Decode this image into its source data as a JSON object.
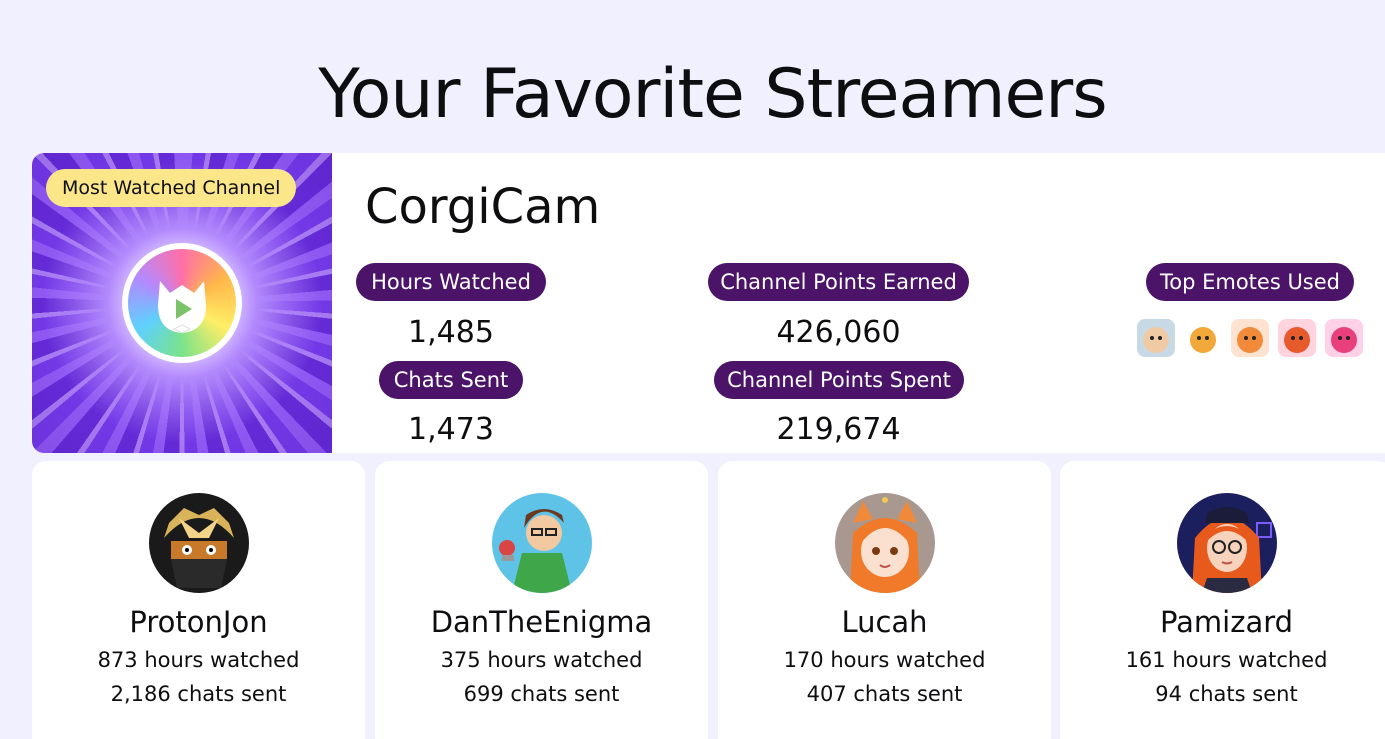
{
  "page": {
    "title": "Your Favorite Streamers"
  },
  "featured": {
    "badge": "Most Watched Channel",
    "channel_name": "CorgiCam",
    "stats": {
      "hours_watched": {
        "label": "Hours Watched",
        "value": "1,485"
      },
      "chats_sent": {
        "label": "Chats Sent",
        "value": "1,473"
      },
      "points_earned": {
        "label": "Channel Points Earned",
        "value": "426,060"
      },
      "points_spent": {
        "label": "Channel Points Spent",
        "value": "219,674"
      }
    },
    "top_emotes": {
      "label": "Top Emotes Used",
      "items": [
        "emote-icon",
        "emote-icon",
        "emote-icon",
        "emote-icon",
        "emote-icon"
      ]
    }
  },
  "streamers": [
    {
      "name": "ProtonJon",
      "hours": "873 hours watched",
      "chats": "2,186 chats sent"
    },
    {
      "name": "DanTheEnigma",
      "hours": "375 hours watched",
      "chats": "699 chats sent"
    },
    {
      "name": "Lucah",
      "hours": "170 hours watched",
      "chats": "407 chats sent"
    },
    {
      "name": "Pamizard",
      "hours": "161 hours watched",
      "chats": "94 chats sent"
    }
  ],
  "colors": {
    "background": "#f0f0ff",
    "pill": "#4b1468",
    "badge": "#fbe68a",
    "hero": "#7b3ff2"
  }
}
